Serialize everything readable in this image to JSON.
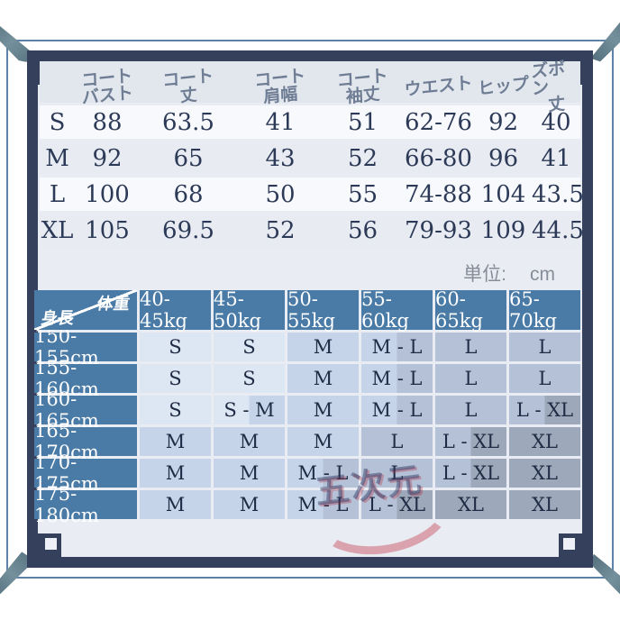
{
  "unit": {
    "label": "単位:",
    "value": "cm"
  },
  "size_table": {
    "headers": [
      {
        "lines": [
          "コート",
          "バスト"
        ]
      },
      {
        "lines": [
          "コート",
          "丈"
        ]
      },
      {
        "lines": [
          "コート",
          "肩幅"
        ]
      },
      {
        "lines": [
          "コート",
          "袖丈"
        ]
      },
      {
        "lines": [
          "ウエスト"
        ]
      },
      {
        "lines": [
          "ヒップ"
        ]
      },
      {
        "lines": [
          "ズボン",
          "丈"
        ]
      }
    ],
    "rows": [
      {
        "size": "S",
        "values": [
          "88",
          "63.5",
          "41",
          "51",
          "62-76",
          "92",
          "40"
        ]
      },
      {
        "size": "M",
        "values": [
          "92",
          "65",
          "43",
          "52",
          "66-80",
          "96",
          "41"
        ]
      },
      {
        "size": "L",
        "values": [
          "100",
          "68",
          "50",
          "55",
          "74-88",
          "104",
          "43.5"
        ]
      },
      {
        "size": "XL",
        "values": [
          "105",
          "69.5",
          "52",
          "56",
          "79-93",
          "109",
          "44.5"
        ]
      }
    ]
  },
  "fit_table": {
    "corner": {
      "top": "体重",
      "bottom": "身長"
    },
    "weight_headers": [
      "40-45kg",
      "45-50kg",
      "50-55kg",
      "55-60kg",
      "60-65kg",
      "65-70kg"
    ],
    "rows": [
      {
        "height": "150-155cm",
        "cells": [
          {
            "text": "S",
            "sizes": [
              "S"
            ]
          },
          {
            "text": "S",
            "sizes": [
              "S"
            ]
          },
          {
            "text": "M",
            "sizes": [
              "M"
            ]
          },
          {
            "text": "M - L",
            "sizes": [
              "M",
              "L"
            ]
          },
          {
            "text": "L",
            "sizes": [
              "L"
            ]
          },
          {
            "text": "L",
            "sizes": [
              "L"
            ]
          }
        ]
      },
      {
        "height": "155-160cm",
        "cells": [
          {
            "text": "S",
            "sizes": [
              "S"
            ]
          },
          {
            "text": "S",
            "sizes": [
              "S"
            ]
          },
          {
            "text": "M",
            "sizes": [
              "M"
            ]
          },
          {
            "text": "M - L",
            "sizes": [
              "M",
              "L"
            ]
          },
          {
            "text": "L",
            "sizes": [
              "L"
            ]
          },
          {
            "text": "L",
            "sizes": [
              "L"
            ]
          }
        ]
      },
      {
        "height": "160-165cm",
        "cells": [
          {
            "text": "S",
            "sizes": [
              "S"
            ]
          },
          {
            "text": "S - M",
            "sizes": [
              "S",
              "M"
            ]
          },
          {
            "text": "M",
            "sizes": [
              "M"
            ]
          },
          {
            "text": "M - L",
            "sizes": [
              "M",
              "L"
            ]
          },
          {
            "text": "L",
            "sizes": [
              "L"
            ]
          },
          {
            "text": "L - XL",
            "sizes": [
              "L",
              "XL"
            ]
          }
        ]
      },
      {
        "height": "165-170cm",
        "cells": [
          {
            "text": "M",
            "sizes": [
              "M"
            ]
          },
          {
            "text": "M",
            "sizes": [
              "M"
            ]
          },
          {
            "text": "M",
            "sizes": [
              "M"
            ]
          },
          {
            "text": "L",
            "sizes": [
              "L"
            ]
          },
          {
            "text": "L - XL",
            "sizes": [
              "L",
              "XL"
            ]
          },
          {
            "text": "XL",
            "sizes": [
              "XL"
            ]
          }
        ]
      },
      {
        "height": "170-175cm",
        "cells": [
          {
            "text": "M",
            "sizes": [
              "M"
            ]
          },
          {
            "text": "M",
            "sizes": [
              "M"
            ]
          },
          {
            "text": "M - L",
            "sizes": [
              "M",
              "L"
            ]
          },
          {
            "text": "L",
            "sizes": [
              "L"
            ]
          },
          {
            "text": "L - XL",
            "sizes": [
              "L",
              "XL"
            ]
          },
          {
            "text": "XL",
            "sizes": [
              "XL"
            ]
          }
        ]
      },
      {
        "height": "175-180cm",
        "cells": [
          {
            "text": "M",
            "sizes": [
              "M"
            ]
          },
          {
            "text": "M",
            "sizes": [
              "M"
            ]
          },
          {
            "text": "M - L",
            "sizes": [
              "M",
              "L"
            ]
          },
          {
            "text": "L - XL",
            "sizes": [
              "L",
              "XL"
            ]
          },
          {
            "text": "XL",
            "sizes": [
              "XL"
            ]
          },
          {
            "text": "XL",
            "sizes": [
              "XL"
            ]
          }
        ]
      }
    ]
  },
  "watermark": {
    "text": "五次元"
  },
  "colors": {
    "frame": "#35405d",
    "table_header_blue": "#4a7ba7",
    "size_S": "#dde7f3",
    "size_M": "#c5d4e9",
    "size_L": "#b4c1d6",
    "size_XL": "#9da8ba"
  }
}
